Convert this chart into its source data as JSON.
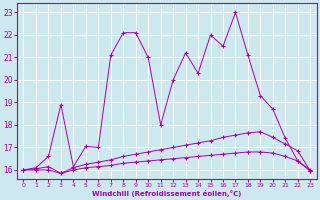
{
  "xlabel": "Windchill (Refroidissement éolien,°C)",
  "background_color": "#cde8ee",
  "grid_color": "#ffffff",
  "line_color": "#aa00aa",
  "xlim": [
    -0.5,
    23.5
  ],
  "ylim": [
    15.6,
    23.4
  ],
  "yticks": [
    16,
    17,
    18,
    19,
    20,
    21,
    22,
    23
  ],
  "xticks": [
    0,
    1,
    2,
    3,
    4,
    5,
    6,
    7,
    8,
    9,
    10,
    11,
    12,
    13,
    14,
    15,
    16,
    17,
    18,
    19,
    20,
    21,
    22,
    23
  ],
  "series_flat1_x": [
    0,
    1,
    2,
    3,
    4,
    5,
    6,
    7,
    8,
    9,
    10,
    11,
    12,
    13,
    14,
    15,
    16,
    17,
    18,
    19,
    20,
    21,
    22,
    23
  ],
  "series_flat1_y": [
    16.0,
    16.0,
    16.0,
    15.85,
    16.0,
    16.1,
    16.15,
    16.2,
    16.3,
    16.35,
    16.4,
    16.45,
    16.5,
    16.55,
    16.6,
    16.65,
    16.7,
    16.75,
    16.8,
    16.8,
    16.75,
    16.6,
    16.4,
    16.0
  ],
  "series_flat2_x": [
    0,
    1,
    2,
    3,
    4,
    5,
    6,
    7,
    8,
    9,
    10,
    11,
    12,
    13,
    14,
    15,
    16,
    17,
    18,
    19,
    20,
    21,
    22,
    23
  ],
  "series_flat2_y": [
    16.0,
    16.05,
    16.15,
    15.85,
    16.1,
    16.25,
    16.35,
    16.45,
    16.6,
    16.7,
    16.8,
    16.9,
    17.0,
    17.1,
    17.2,
    17.3,
    17.45,
    17.55,
    17.65,
    17.7,
    17.45,
    17.15,
    16.85,
    15.95
  ],
  "series_jagged_x": [
    0,
    1,
    2,
    3,
    4,
    5,
    6,
    7,
    8,
    9,
    10,
    11,
    12,
    13,
    14,
    15,
    16,
    17,
    18,
    19,
    20,
    21,
    22,
    23
  ],
  "series_jagged_y": [
    16.0,
    16.1,
    16.6,
    18.9,
    16.15,
    17.05,
    17.0,
    21.1,
    22.1,
    22.1,
    21.0,
    18.0,
    20.0,
    21.2,
    20.3,
    22.0,
    21.5,
    23.0,
    21.1,
    19.3,
    18.7,
    17.4,
    16.4,
    15.95
  ]
}
